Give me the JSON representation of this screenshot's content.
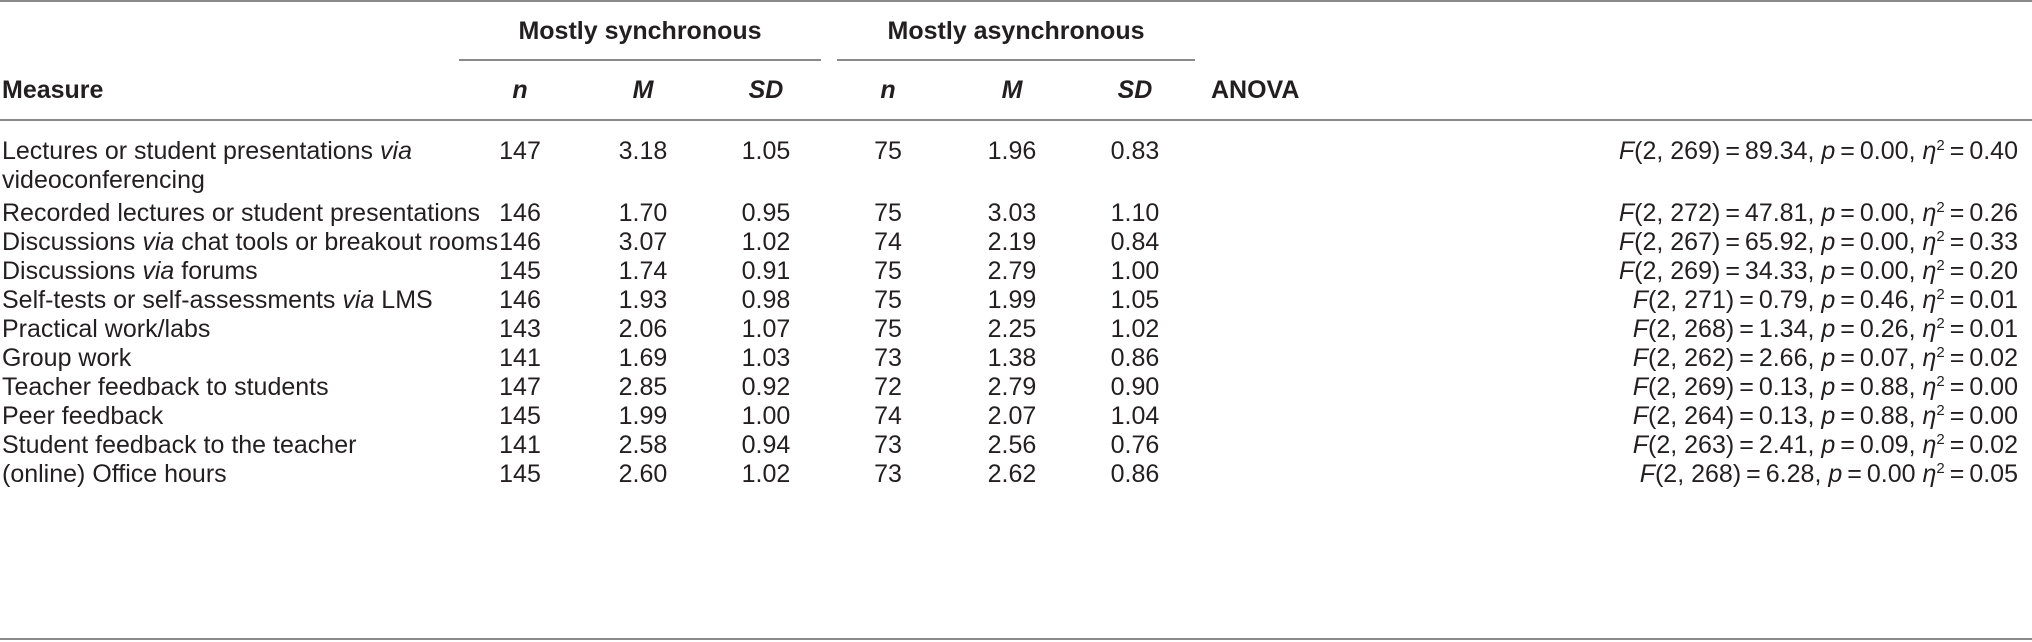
{
  "header": {
    "group_sync": "Mostly synchronous",
    "group_async": "Mostly asynchronous",
    "measure": "Measure",
    "n": "n",
    "m": "M",
    "sd": "SD",
    "anova": "ANOVA"
  },
  "rows": [
    {
      "measure_pre": "Lectures or student presentations ",
      "measure_it": "via",
      "measure_post": "",
      "measure_line2": "videoconferencing",
      "sn": "147",
      "sm": "3.18",
      "ssd": "1.05",
      "an": "75",
      "am": "1.96",
      "asd": "0.83",
      "df": "(2, 269)",
      "f": "89.34",
      "p": "0.00",
      "eta_sep": ",",
      "eta": "0.40"
    },
    {
      "measure_pre": "Recorded lectures or student presentations",
      "measure_it": "",
      "measure_post": "",
      "measure_line2": "",
      "sn": "146",
      "sm": "1.70",
      "ssd": "0.95",
      "an": "75",
      "am": "3.03",
      "asd": "1.10",
      "df": "(2, 272)",
      "f": "47.81",
      "p": "0.00",
      "eta_sep": ",",
      "eta": "0.26"
    },
    {
      "measure_pre": "Discussions ",
      "measure_it": "via",
      "measure_post": " chat tools or breakout rooms",
      "measure_line2": "",
      "sn": "146",
      "sm": "3.07",
      "ssd": "1.02",
      "an": "74",
      "am": "2.19",
      "asd": "0.84",
      "df": "(2, 267)",
      "f": "65.92",
      "p": "0.00",
      "eta_sep": ",",
      "eta": "0.33"
    },
    {
      "measure_pre": "Discussions ",
      "measure_it": "via",
      "measure_post": " forums",
      "measure_line2": "",
      "sn": "145",
      "sm": "1.74",
      "ssd": "0.91",
      "an": "75",
      "am": "2.79",
      "asd": "1.00",
      "df": "(2, 269)",
      "f": "34.33",
      "p": "0.00",
      "eta_sep": ",",
      "eta": "0.20"
    },
    {
      "measure_pre": "Self-tests or self-assessments ",
      "measure_it": "via",
      "measure_post": " LMS",
      "measure_line2": "",
      "sn": "146",
      "sm": "1.93",
      "ssd": "0.98",
      "an": "75",
      "am": "1.99",
      "asd": "1.05",
      "df": "(2, 271)",
      "f": "0.79",
      "p": "0.46",
      "eta_sep": ",",
      "eta": "0.01"
    },
    {
      "measure_pre": "Practical work/labs",
      "measure_it": "",
      "measure_post": "",
      "measure_line2": "",
      "sn": "143",
      "sm": "2.06",
      "ssd": "1.07",
      "an": "75",
      "am": "2.25",
      "asd": "1.02",
      "df": "(2, 268)",
      "f": "1.34",
      "p": "0.26",
      "eta_sep": ",",
      "eta": "0.01"
    },
    {
      "measure_pre": "Group work",
      "measure_it": "",
      "measure_post": "",
      "measure_line2": "",
      "sn": "141",
      "sm": "1.69",
      "ssd": "1.03",
      "an": "73",
      "am": "1.38",
      "asd": "0.86",
      "df": "(2, 262)",
      "f": "2.66",
      "p": "0.07",
      "eta_sep": ",",
      "eta": "0.02"
    },
    {
      "measure_pre": "Teacher feedback to students",
      "measure_it": "",
      "measure_post": "",
      "measure_line2": "",
      "sn": "147",
      "sm": "2.85",
      "ssd": "0.92",
      "an": "72",
      "am": "2.79",
      "asd": "0.90",
      "df": "(2, 269)",
      "f": "0.13",
      "p": "0.88",
      "eta_sep": ",",
      "eta": "0.00"
    },
    {
      "measure_pre": "Peer feedback",
      "measure_it": "",
      "measure_post": "",
      "measure_line2": "",
      "sn": "145",
      "sm": "1.99",
      "ssd": "1.00",
      "an": "74",
      "am": "2.07",
      "asd": "1.04",
      "df": "(2, 264)",
      "f": "0.13",
      "p": "0.88",
      "eta_sep": ",",
      "eta": "0.00"
    },
    {
      "measure_pre": "Student feedback to the teacher",
      "measure_it": "",
      "measure_post": "",
      "measure_line2": "",
      "sn": "141",
      "sm": "2.58",
      "ssd": "0.94",
      "an": "73",
      "am": "2.56",
      "asd": "0.76",
      "df": "(2, 263)",
      "f": "2.41",
      "p": "0.09",
      "eta_sep": ",",
      "eta": "0.02"
    },
    {
      "measure_pre": "(online) Office hours",
      "measure_it": "",
      "measure_post": "",
      "measure_line2": "",
      "sn": "145",
      "sm": "2.60",
      "ssd": "1.02",
      "an": "73",
      "am": "2.62",
      "asd": "0.86",
      "df": "(2, 268)",
      "f": "6.28",
      "p": "0.00",
      "eta_sep": "",
      "eta": "0.05"
    }
  ]
}
